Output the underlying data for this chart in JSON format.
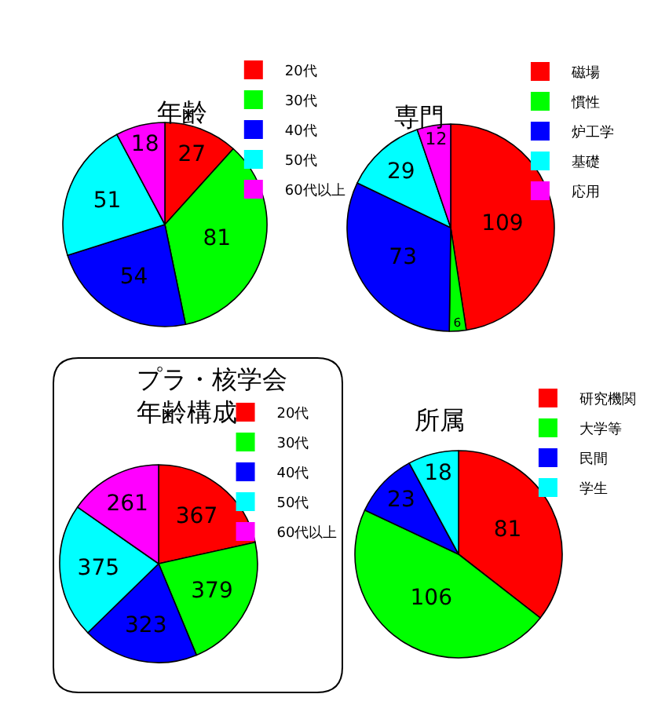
{
  "chart_data": [
    {
      "type": "pie",
      "title": "年齢",
      "categories": [
        "20代",
        "30代",
        "40代",
        "50代",
        "60代以上"
      ],
      "values": [
        27,
        81,
        54,
        51,
        18
      ],
      "colors": [
        "#ff0000",
        "#00ff00",
        "#0000ff",
        "#00ffff",
        "#ff00ff"
      ],
      "data_labels": true,
      "legend": "top right"
    },
    {
      "type": "pie",
      "title": "専門",
      "categories": [
        "磁場",
        "慣性",
        "炉工学",
        "基礎",
        "応用"
      ],
      "values": [
        109,
        6,
        73,
        29,
        12
      ],
      "colors": [
        "#ff0000",
        "#00ff00",
        "#0000ff",
        "#00ffff",
        "#ff00ff"
      ],
      "data_labels": true,
      "legend": "top right"
    },
    {
      "type": "pie",
      "title": "プラ・核学会年齢構成",
      "categories": [
        "20代",
        "30代",
        "40代",
        "50代",
        "60代以上"
      ],
      "values": [
        367,
        379,
        323,
        375,
        261
      ],
      "colors": [
        "#ff0000",
        "#00ff00",
        "#0000ff",
        "#00ffff",
        "#ff00ff"
      ],
      "data_labels": true,
      "legend": "top right"
    },
    {
      "type": "pie",
      "title": "所属",
      "categories": [
        "研究機関",
        "大学等",
        "民間",
        "学生"
      ],
      "values": [
        81,
        106,
        23,
        18
      ],
      "colors": [
        "#ff0000",
        "#00ff00",
        "#0000ff",
        "#00ffff"
      ],
      "data_labels": true,
      "legend": "top right"
    }
  ]
}
